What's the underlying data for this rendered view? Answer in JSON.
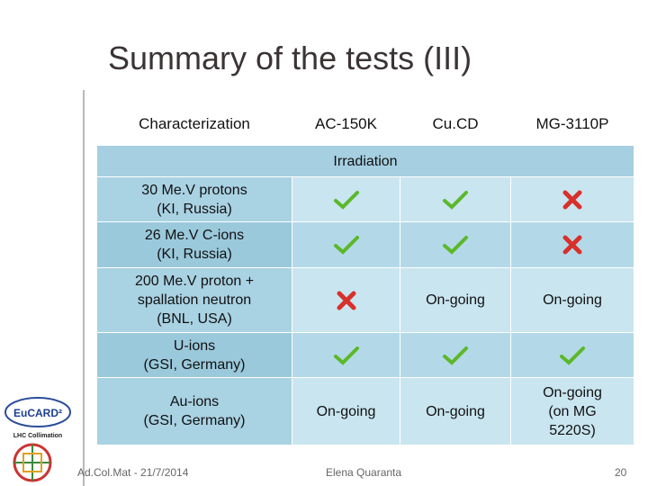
{
  "header": {
    "title": "Summary of the tests (III)"
  },
  "table": {
    "columns": [
      "Characterization",
      "AC-150K",
      "Cu.CD",
      "MG-3110P"
    ],
    "section": "Irradiation",
    "rows": [
      {
        "label": "30 Me.V protons\n(KI, Russia)"
      },
      {
        "label": "26 Me.V C-ions\n(KI, Russia)"
      },
      {
        "label": "200 Me.V proton +\nspallation neutron\n(BNL, USA)",
        "cu_cd": "On-going",
        "mg_3110p": "On-going"
      },
      {
        "label": "U-ions\n(GSI, Germany)"
      },
      {
        "label": "Au-ions\n(GSI, Germany)",
        "ac_150k": "On-going",
        "cu_cd": "On-going",
        "mg_3110p": "On-going\n(on MG\n5220S)"
      }
    ]
  },
  "logo": {
    "name": "EuCARD²",
    "sub": "LHC Collimation"
  },
  "footer": {
    "event": "Ad.Col.Mat - 21/7/2014",
    "author": "Elena Quaranta",
    "page": "20"
  }
}
